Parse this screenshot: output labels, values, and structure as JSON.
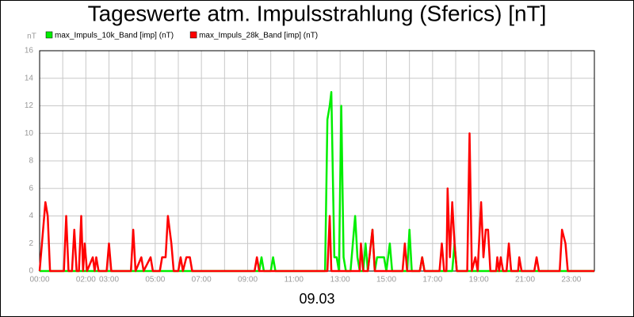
{
  "chart_data": {
    "type": "line",
    "title": "Tageswerte atm. Impulsstrahlung (Sferics) [nT]",
    "y_unit": "nT",
    "x_label": "09.03",
    "x": [
      0,
      0.1,
      0.25,
      0.35,
      0.45,
      1.05,
      1.15,
      1.25,
      1.4,
      1.5,
      1.6,
      1.7,
      1.8,
      1.88,
      1.95,
      2.05,
      2.3,
      2.38,
      2.45,
      2.55,
      2.9,
      3.0,
      3.1,
      3.95,
      4.05,
      4.15,
      4.4,
      4.5,
      4.8,
      4.9,
      5.2,
      5.3,
      5.45,
      5.55,
      5.7,
      5.8,
      6.0,
      6.1,
      6.2,
      6.35,
      6.5,
      6.6,
      9.3,
      9.4,
      9.5,
      9.6,
      9.7,
      10.0,
      10.1,
      10.2,
      12.35,
      12.45,
      12.55,
      12.62,
      12.75,
      12.85,
      12.95,
      13.05,
      13.15,
      13.25,
      13.45,
      13.55,
      13.65,
      13.75,
      13.85,
      13.9,
      14.0,
      14.1,
      14.2,
      14.4,
      14.5,
      14.6,
      14.8,
      14.9,
      15.0,
      15.15,
      15.25,
      15.7,
      15.8,
      15.9,
      16.0,
      16.1,
      16.45,
      16.55,
      16.65,
      17.3,
      17.4,
      17.5,
      17.6,
      17.65,
      17.75,
      17.85,
      17.95,
      18.05,
      18.5,
      18.6,
      18.7,
      18.85,
      18.95,
      19.1,
      19.2,
      19.3,
      19.4,
      19.5,
      19.75,
      19.8,
      19.88,
      19.95,
      20.05,
      20.2,
      20.3,
      20.4,
      20.7,
      20.75,
      20.85,
      21.4,
      21.5,
      21.6,
      22.5,
      22.6,
      22.75,
      22.85,
      24
    ],
    "series": [
      {
        "name": "max_Impuls_10k_Band [imp] (nT)",
        "color": "#00ee00",
        "values": [
          0,
          0,
          0,
          0,
          0,
          0,
          0,
          0,
          0,
          0,
          0,
          0,
          0,
          0,
          0,
          0,
          0,
          0,
          0,
          0,
          0,
          0,
          0,
          0,
          0,
          0,
          0,
          0,
          0,
          0,
          0,
          0,
          0,
          0,
          0,
          0,
          0,
          0,
          0,
          0,
          0,
          0,
          0,
          0,
          0,
          1,
          0,
          0,
          1,
          0,
          0,
          11,
          12,
          13,
          1,
          1,
          0,
          12,
          1,
          0,
          0,
          2,
          4,
          1,
          0,
          0,
          0,
          2,
          0,
          3,
          0,
          1,
          1,
          1,
          0,
          2,
          0,
          0,
          0,
          0,
          3,
          0,
          0,
          1,
          0,
          0,
          0,
          0,
          0,
          0,
          0,
          0,
          2,
          0,
          0,
          0,
          0,
          0,
          0,
          0,
          0,
          0,
          0,
          0,
          0,
          0,
          0,
          0,
          0,
          0,
          0,
          0,
          0,
          0,
          0,
          0,
          0,
          0,
          0,
          0,
          0,
          0,
          0
        ]
      },
      {
        "name": "max_Impuls_28k_Band [imp] (nT)",
        "color": "#ff0000",
        "values": [
          0,
          2,
          5,
          4,
          0,
          0,
          4,
          0,
          0,
          3,
          0,
          0,
          4,
          0,
          2,
          0,
          1,
          0,
          1,
          0,
          0,
          2,
          0,
          0,
          3,
          0,
          1,
          0,
          1,
          0,
          0,
          1,
          1,
          4,
          2,
          0,
          0,
          1,
          0,
          1,
          1,
          0,
          0,
          1,
          0,
          0,
          0,
          0,
          0,
          0,
          0,
          0,
          4,
          0,
          0,
          0,
          0,
          0,
          0,
          0,
          0,
          0,
          0,
          0,
          0,
          2,
          0,
          0,
          0,
          3,
          0,
          0,
          0,
          0,
          0,
          0,
          0,
          0,
          2,
          0,
          0,
          0,
          0,
          1,
          0,
          0,
          2,
          0,
          0,
          6,
          1,
          5,
          2,
          0,
          0,
          10,
          0,
          1,
          0,
          5,
          1,
          3,
          3,
          0,
          0,
          1,
          0,
          1,
          0,
          0,
          2,
          0,
          0,
          1,
          0,
          0,
          1,
          0,
          0,
          3,
          2,
          0,
          0
        ]
      }
    ],
    "xlim": [
      0,
      24
    ],
    "xticks": [
      {
        "value": 0,
        "label": "00:00"
      },
      {
        "value": 1,
        "label": null
      },
      {
        "value": 2,
        "label": "02:00"
      },
      {
        "value": 3,
        "label": "03:00"
      },
      {
        "value": 4,
        "label": null
      },
      {
        "value": 5,
        "label": "05:00"
      },
      {
        "value": 6,
        "label": null
      },
      {
        "value": 7,
        "label": "07:00"
      },
      {
        "value": 8,
        "label": null
      },
      {
        "value": 9,
        "label": "09:00"
      },
      {
        "value": 10,
        "label": null
      },
      {
        "value": 11,
        "label": "11:00"
      },
      {
        "value": 12,
        "label": null
      },
      {
        "value": 13,
        "label": "13:00"
      },
      {
        "value": 14,
        "label": null
      },
      {
        "value": 15,
        "label": "15:00"
      },
      {
        "value": 16,
        "label": null
      },
      {
        "value": 17,
        "label": "17:00"
      },
      {
        "value": 18,
        "label": null
      },
      {
        "value": 19,
        "label": "19:00"
      },
      {
        "value": 20,
        "label": null
      },
      {
        "value": 21,
        "label": "21:00"
      },
      {
        "value": 22,
        "label": null
      },
      {
        "value": 23,
        "label": "23:00"
      },
      {
        "value": 24,
        "label": null
      }
    ],
    "ylim": [
      0,
      16
    ],
    "yticks": [
      0,
      2,
      4,
      6,
      8,
      10,
      12,
      14,
      16
    ],
    "grid": true
  }
}
